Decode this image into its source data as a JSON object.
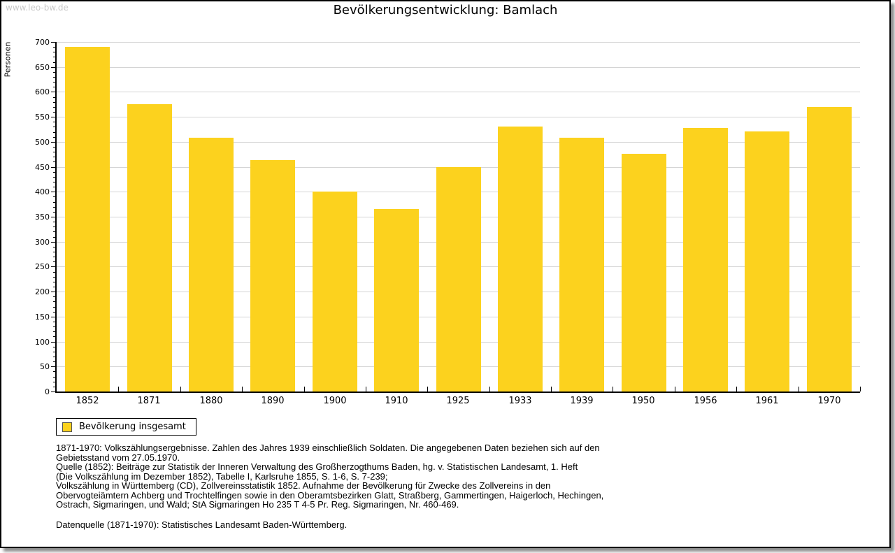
{
  "watermark": "www.leo-bw.de",
  "chart_data": {
    "type": "bar",
    "title": "Bevölkerungsentwicklung: Bamlach",
    "ylabel": "Personen",
    "xlabel": "",
    "categories": [
      "1852",
      "1871",
      "1880",
      "1890",
      "1900",
      "1910",
      "1925",
      "1933",
      "1939",
      "1950",
      "1956",
      "1961",
      "1970"
    ],
    "values": [
      690,
      575,
      508,
      464,
      400,
      365,
      449,
      530,
      508,
      476,
      528,
      521,
      570
    ],
    "ylim": [
      0,
      700
    ],
    "ytick_step": 50,
    "minor_tick_step": 10,
    "grid": true,
    "bar_color": "#fcd21e",
    "legend_label": "Bevölkerung insgesamt",
    "legend_position": "bottom-left"
  },
  "footer": {
    "lines": [
      "1871-1970: Volkszählungsergebnisse. Zahlen des Jahres 1939 einschließlich Soldaten. Die angegebenen Daten beziehen sich auf den",
      "Gebietsstand vom 27.05.1970.",
      "Quelle (1852): Beiträge zur Statistik der Inneren Verwaltung des Großherzogthums Baden, hg. v. Statistischen Landesamt, 1. Heft",
      "(Die Volkszählung im Dezember 1852), Tabelle I, Karlsruhe 1855, S. 1-6, S. 7-239;",
      "Volkszählung in Württemberg (CD), Zollvereinsstatistik 1852. Aufnahme der Bevölkerung für Zwecke des Zollvereins in den",
      "Obervogteiämtern Achberg und Trochtelfingen sowie in den Oberamtsbezirken Glatt, Straßberg, Gammertingen, Haigerloch, Hechingen,",
      "Ostrach, Sigmaringen, und Wald; StA Sigmaringen Ho 235 T 4-5 Pr. Reg. Sigmaringen, Nr. 460-469."
    ],
    "datasource": "Datenquelle (1871-1970): Statistisches Landesamt Baden-Württemberg."
  }
}
